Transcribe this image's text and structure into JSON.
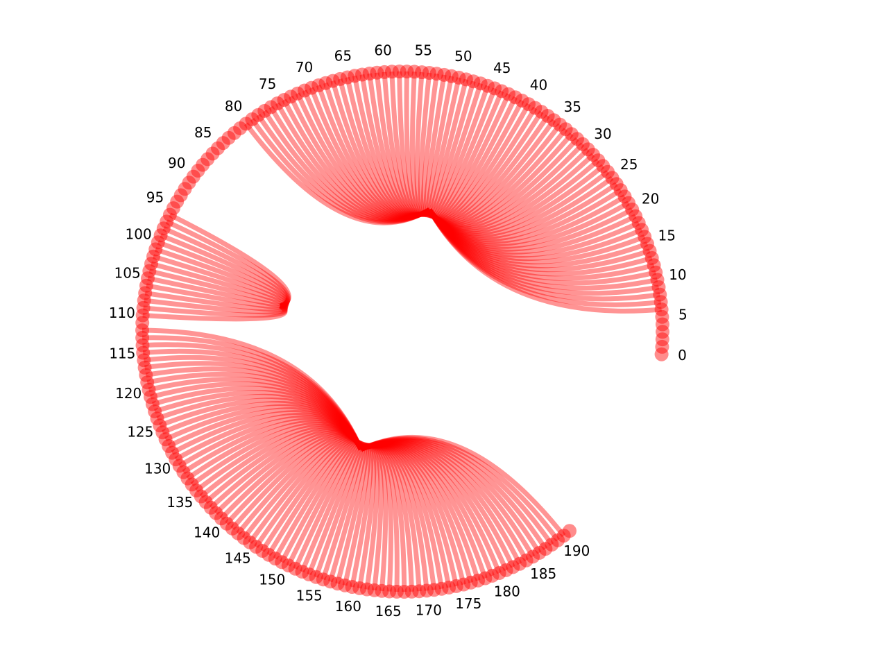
{
  "chart_data": {
    "type": "chord",
    "title": "",
    "node_count": 192,
    "node_indices": {
      "start": 0,
      "end": 191
    },
    "arc_span_degrees": {
      "start": -5,
      "end": 310
    },
    "tick_step": 5,
    "tick_labels": [
      "0",
      "5",
      "10",
      "15",
      "20",
      "25",
      "30",
      "35",
      "40",
      "45",
      "50",
      "55",
      "60",
      "65",
      "70",
      "75",
      "80",
      "85",
      "90",
      "95",
      "100",
      "105",
      "110",
      "115",
      "120",
      "125",
      "130",
      "135",
      "140",
      "145",
      "150",
      "155",
      "160",
      "165",
      "170",
      "175",
      "180",
      "185",
      "190"
    ],
    "groups": [
      {
        "hub_index": 50,
        "member_range": [
          6,
          80
        ]
      },
      {
        "hub_index": 105,
        "member_range": [
          96,
          110
        ]
      },
      {
        "hub_index": 155,
        "member_range": [
          112,
          190
        ]
      }
    ],
    "color": "#ff0000",
    "node_alpha": 0.45,
    "edge_alpha": 0.42,
    "grid": false,
    "axes_visible": false
  }
}
